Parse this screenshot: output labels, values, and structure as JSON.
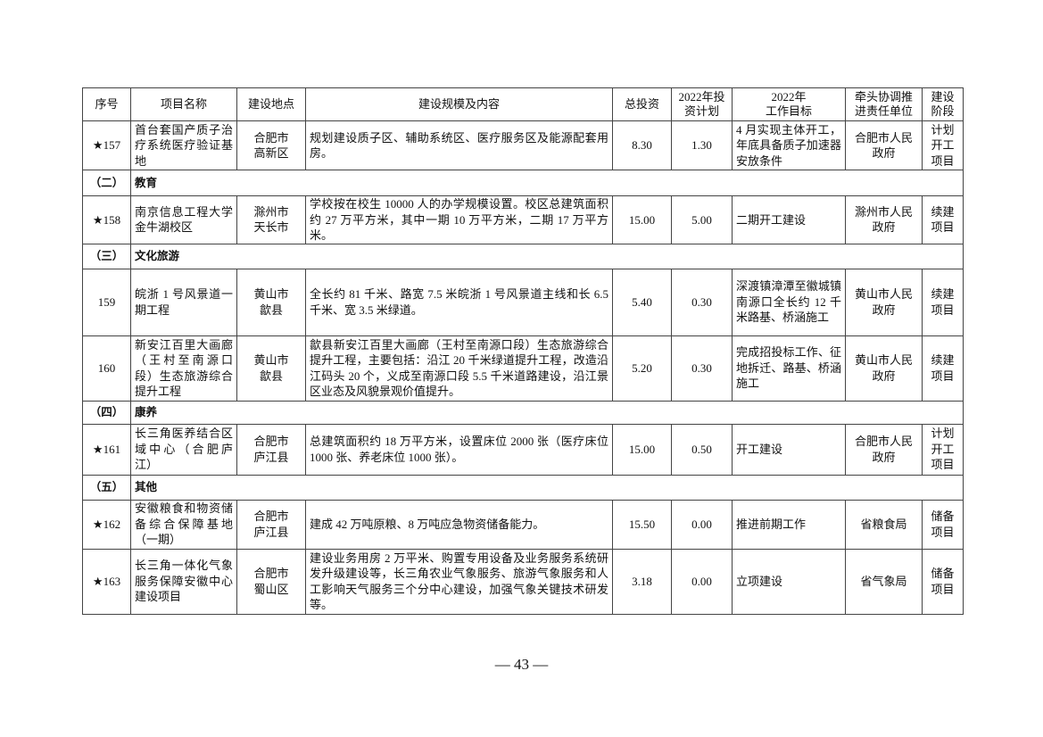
{
  "headers": [
    "序号",
    "项目名称",
    "建设地点",
    "建设规模及内容",
    "总投资",
    "2022年投\n资计划",
    "2022年\n工作目标",
    "牵头协调推\n进责任单位",
    "建设\n阶段"
  ],
  "rows": [
    {
      "type": "item",
      "no": "★157",
      "name": "首台套国产质子治疗系统医疗验证基地",
      "location": "合肥市\n高新区",
      "content": "规划建设质子区、辅助系统区、医疗服务区及能源配套用房。",
      "total": "8.30",
      "plan2022": "1.30",
      "goal": "4 月实现主体开工，年底具备质子加速器安放条件",
      "unit": "合肥市人民\n政府",
      "stage": "计划\n开工\n项目",
      "h": 55
    },
    {
      "type": "section",
      "no": "（二）",
      "title": "教育",
      "h": 29
    },
    {
      "type": "item",
      "no": "★158",
      "name": "南京信息工程大学金牛湖校区",
      "location": "滁州市\n天长市",
      "content": "学校按在校生 10000 人的办学规模设置。校区总建筑面积约 27 万平方米，其中一期 10 万平方米，二期 17 万平方米。",
      "total": "15.00",
      "plan2022": "5.00",
      "goal": "二期开工建设",
      "unit": "滁州市人民\n政府",
      "stage": "续建\n项目",
      "h": 53
    },
    {
      "type": "section",
      "no": "（三）",
      "title": "文化旅游",
      "h": 28
    },
    {
      "type": "item",
      "no": "159",
      "name": "皖浙 1 号风景道一期工程",
      "location": "黄山市\n歙县",
      "content": "全长约 81 千米、路宽 7.5 米皖浙 1 号风景道主线和长 6.5 千米、宽 3.5 米绿道。",
      "total": "5.40",
      "plan2022": "0.30",
      "goal": "深渡镇漳潭至徽城镇南源口全长约 12 千米路基、桥涵施工",
      "unit": "黄山市人民\n政府",
      "stage": "续建\n项目",
      "h": 75
    },
    {
      "type": "item",
      "no": "160",
      "name": "新安江百里大画廊（王村至南源口段）生态旅游综合提升工程",
      "location": "黄山市\n歙县",
      "content": "歙县新安江百里大画廊（王村至南源口段）生态旅游综合提升工程，主要包括：沿江 20 千米绿道提升工程，改造沿江码头 20 个，义成至南源口段 5.5 千米道路建设，沿江景区业态及风貌景观价值提升。",
      "total": "5.20",
      "plan2022": "0.30",
      "goal": "完成招投标工作、征地拆迁、路基、桥涵施工",
      "unit": "黄山市人民\n政府",
      "stage": "续建\n项目",
      "h": 73
    },
    {
      "type": "section",
      "no": "（四）",
      "title": "康养",
      "h": 26
    },
    {
      "type": "item",
      "no": "★161",
      "name": "长三角医养结合区域中心（合肥庐江）",
      "location": "合肥市\n庐江县",
      "content": "总建筑面积约 18 万平方米，设置床位 2000 张（医疗床位 1000 张、养老床位 1000 张）。",
      "total": "15.00",
      "plan2022": "0.50",
      "goal": "开工建设",
      "unit": "合肥市人民\n政府",
      "stage": "计划\n开工\n项目",
      "h": 57
    },
    {
      "type": "section",
      "no": "（五）",
      "title": "其他",
      "h": 28
    },
    {
      "type": "item",
      "no": "★162",
      "name": "安徽粮食和物资储备综合保障基地（一期）",
      "location": "合肥市\n庐江县",
      "content": "建成 42 万吨原粮、8 万吨应急物资储备能力。",
      "total": "15.50",
      "plan2022": "0.00",
      "goal": "推进前期工作",
      "unit": "省粮食局",
      "stage": "储备\n项目",
      "h": 55
    },
    {
      "type": "item",
      "no": "★163",
      "name": "长三角一体化气象服务保障安徽中心建设项目",
      "location": "合肥市\n蜀山区",
      "content": "建设业务用房 2 万平米、购置专用设备及业务服务系统研发升级建设等，长三角农业气象服务、旅游气象服务和人工影响天气服务三个分中心建设，加强气象关键技术研发等。",
      "total": "3.18",
      "plan2022": "0.00",
      "goal": "立项建设",
      "unit": "省气象局",
      "stage": "储备\n项目",
      "h": 73
    }
  ],
  "page_number": "— 43 —"
}
